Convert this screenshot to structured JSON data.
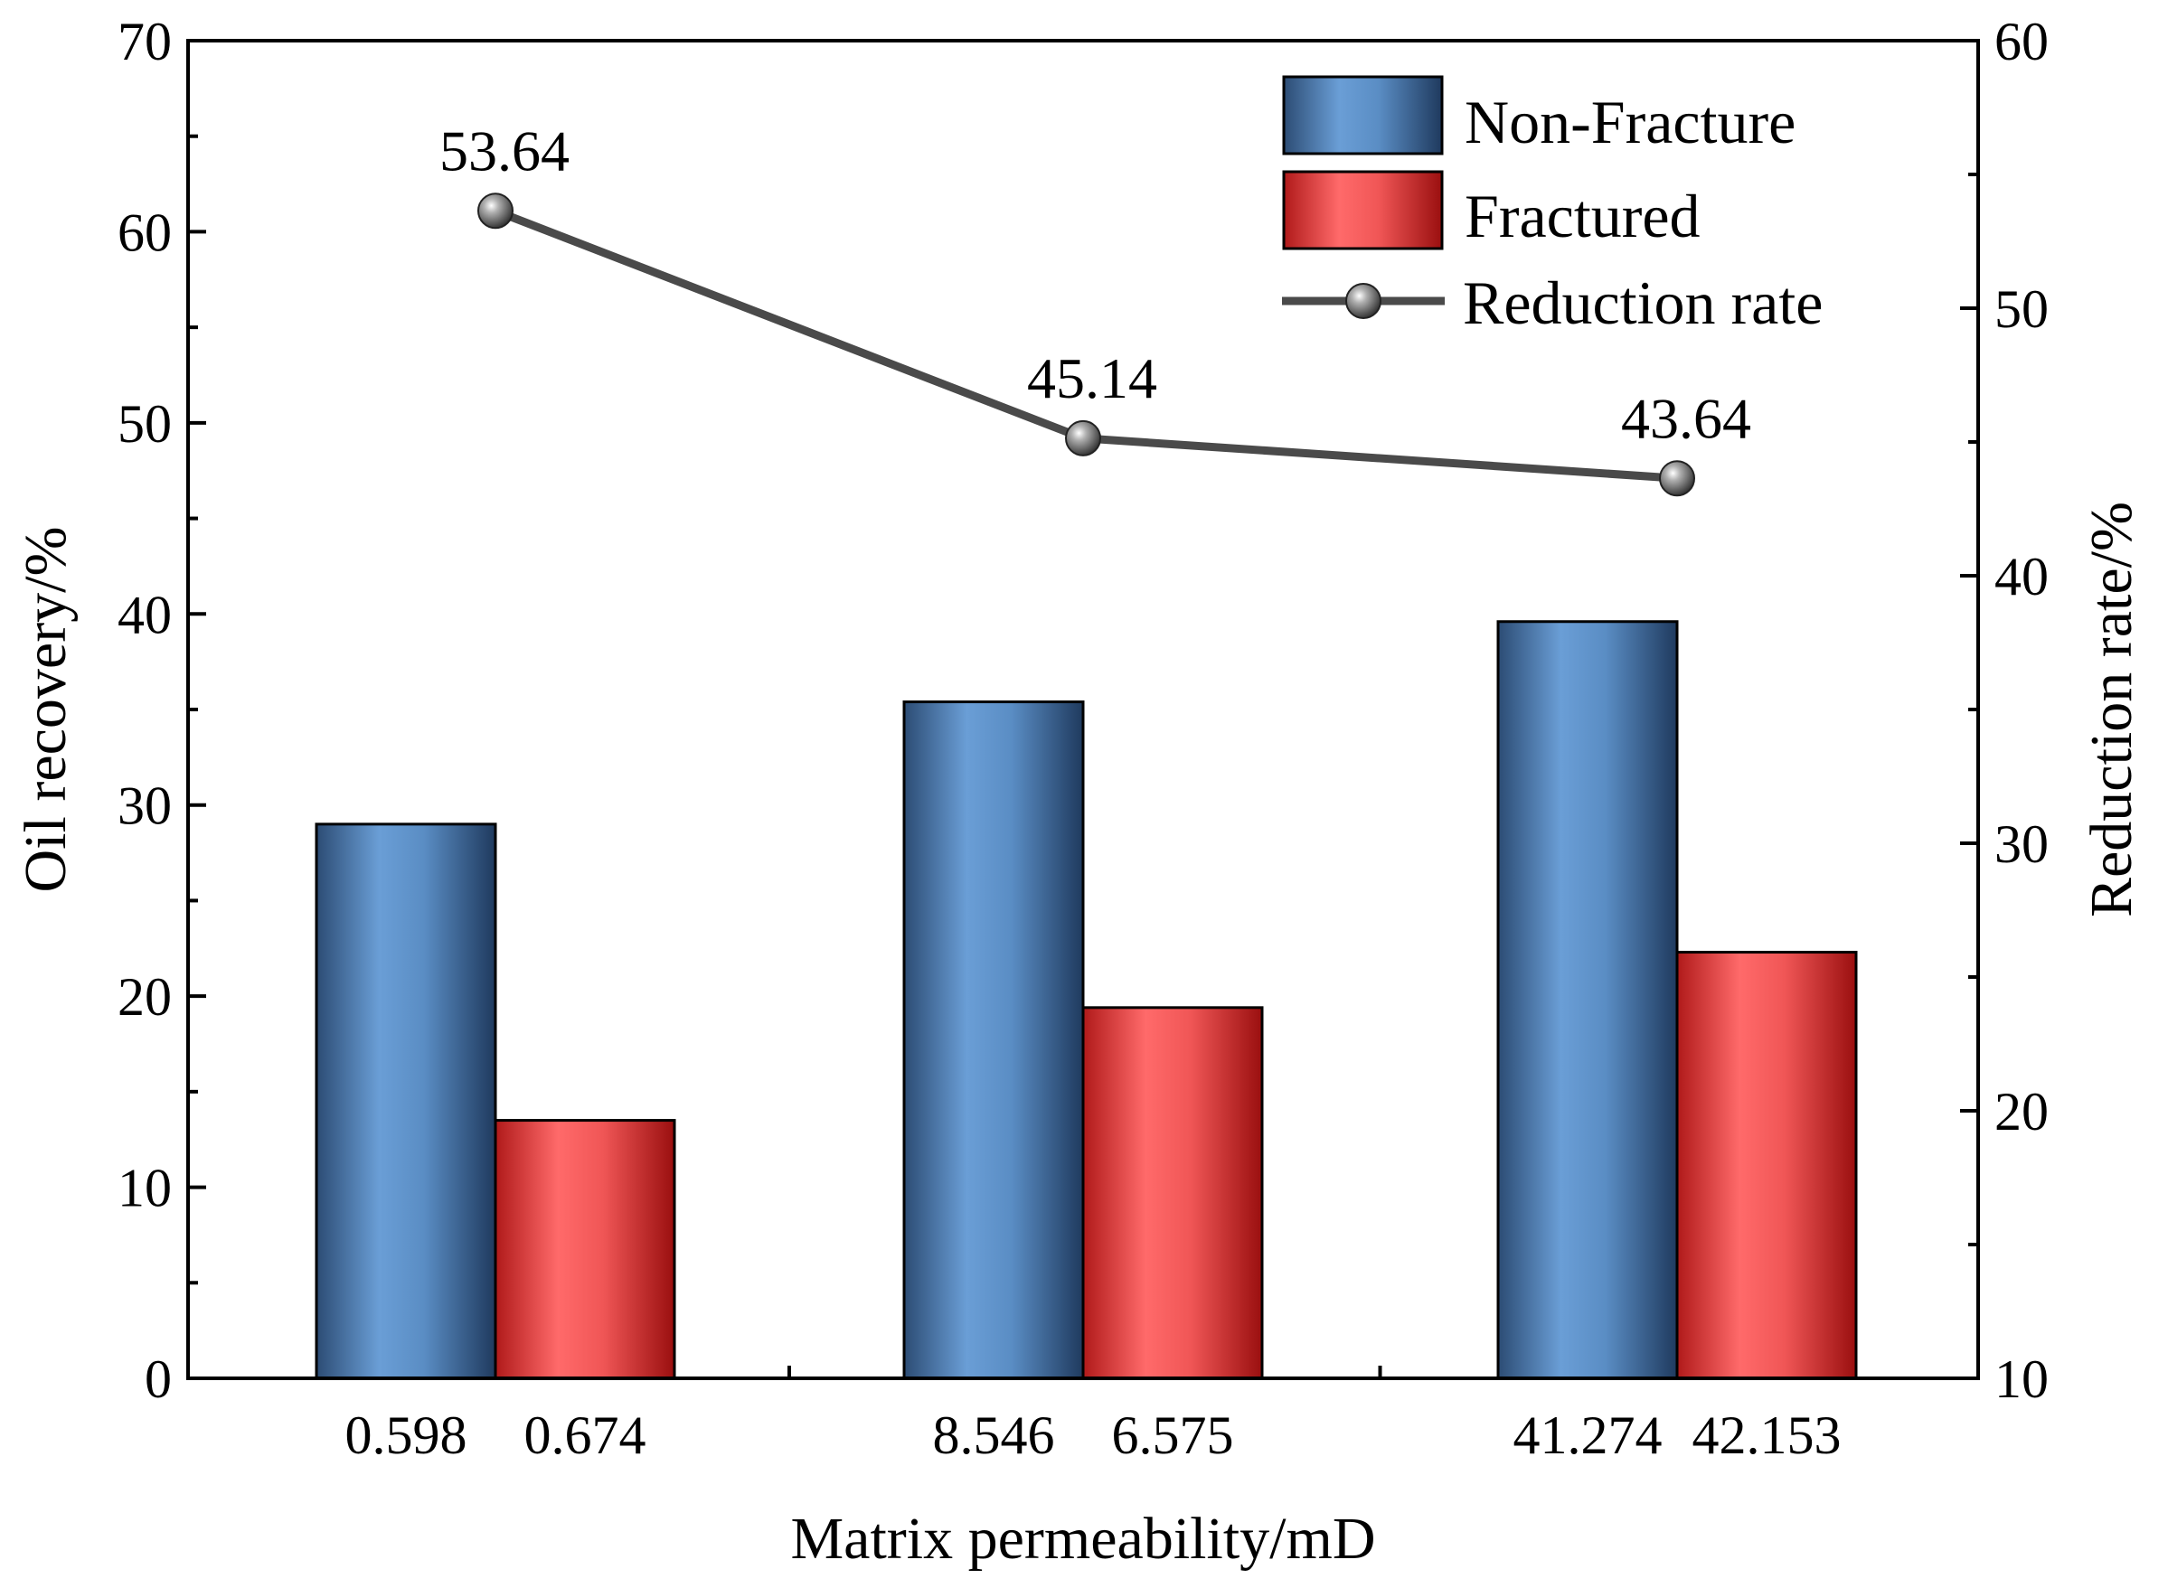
{
  "chart_data": {
    "type": "bar",
    "groups": [
      {
        "non_fracture_perm": "0.598",
        "fractured_perm": "0.674"
      },
      {
        "non_fracture_perm": "8.546",
        "fractured_perm": "6.575"
      },
      {
        "non_fracture_perm": "41.274",
        "fractured_perm": "42.153"
      }
    ],
    "series": [
      {
        "name": "Non-Fracture",
        "axis": "left",
        "values": [
          29.0,
          35.4,
          39.6
        ]
      },
      {
        "name": "Fractured",
        "axis": "left",
        "values": [
          13.5,
          19.4,
          22.3
        ]
      },
      {
        "name": "Reduction rate",
        "axis": "right",
        "type": "line",
        "values": [
          53.64,
          45.14,
          43.64
        ],
        "labels": [
          "53.64",
          "45.14",
          "43.64"
        ]
      }
    ],
    "xlabel": "Matrix permeability/mD",
    "ylabel": "Oil recovery/%",
    "ylabel_right": "Reduction rate/%",
    "ylim": [
      0,
      70
    ],
    "ylim_right": [
      10,
      60
    ],
    "yticks": [
      0,
      10,
      20,
      30,
      40,
      50,
      60,
      70
    ],
    "yticks_right": [
      10,
      20,
      30,
      40,
      50,
      60
    ],
    "legend_position": "top-right",
    "colors": {
      "non_fracture": "#5b8fc7",
      "fractured": "#f05a5a",
      "line": "#4a4a4a"
    }
  }
}
